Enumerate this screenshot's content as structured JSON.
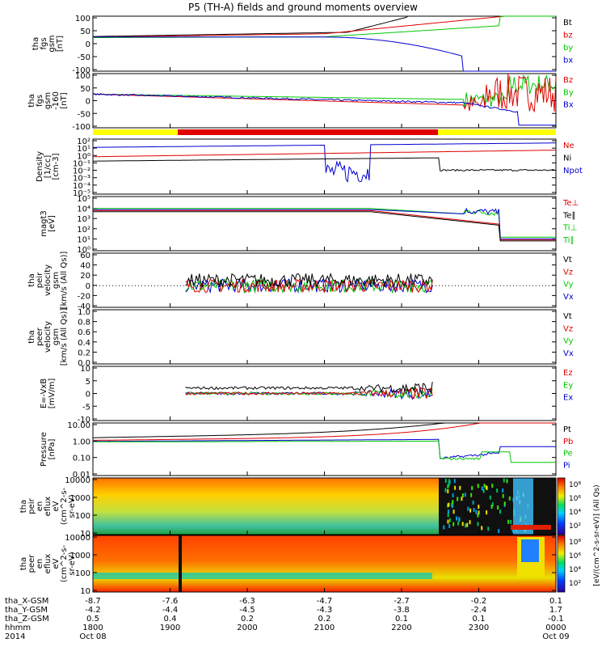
{
  "title": "P5 (TH-A) fields and ground moments overview",
  "colors": {
    "black": "#000000",
    "red": "#e00000",
    "green": "#00c800",
    "blue": "#0000d0",
    "yellow": "#ffff00",
    "barred": "#e00000"
  },
  "chart_data": [
    {
      "type": "line",
      "panel": 1,
      "ylabel": [
        "tha",
        "fgs",
        "gsm",
        "[nT]"
      ],
      "yticks": [
        "100",
        "50",
        "0",
        "-50",
        "-100"
      ],
      "ylim": [
        -100,
        100
      ],
      "legend": [
        "Bt",
        "bz",
        "by",
        "bx"
      ],
      "legend_colors": [
        "black",
        "red",
        "green",
        "blue"
      ]
    },
    {
      "type": "line",
      "panel": 2,
      "ylabel": [
        "tha",
        "fgs",
        "gsm",
        "-160",
        "[nT]"
      ],
      "yticks": [
        "100",
        "50",
        "0",
        "-50",
        "-100"
      ],
      "ylim": [
        -120,
        110
      ],
      "legend": [
        "Bz",
        "By",
        "Bx"
      ],
      "legend_colors": [
        "red",
        "green",
        "blue"
      ]
    },
    {
      "type": "line",
      "panel": 3,
      "ylabel": [
        "Density",
        "[1/cc]",
        "[cm-3]"
      ],
      "yticks": [
        "10²",
        "10¹",
        "10⁰",
        "10⁻¹",
        "10⁻²",
        "10⁻³",
        "10⁻⁴",
        "10⁻⁵"
      ],
      "scale": "log",
      "legend": [
        "Ne",
        "Ni",
        "Npot"
      ],
      "legend_colors": [
        "red",
        "black",
        "blue"
      ]
    },
    {
      "type": "line",
      "panel": 4,
      "ylabel": [
        "magt3",
        "[eV]"
      ],
      "yticks": [
        "10⁵",
        "10⁴",
        "10³",
        "10²",
        "10¹",
        "10⁰"
      ],
      "scale": "log",
      "legend": [
        "Te⊥",
        "Te∥",
        "Ti⊥",
        "Ti∥"
      ],
      "legend_colors": [
        "red",
        "black",
        "green",
        "green"
      ]
    },
    {
      "type": "line",
      "panel": 5,
      "ylabel": [
        "tha",
        "peir",
        "velocity",
        "gsm",
        "[km/s (All Qs)]"
      ],
      "yticks": [
        "60",
        "40",
        "20",
        "0",
        "-20",
        "-40"
      ],
      "ylim": [
        -40,
        60
      ],
      "legend": [
        "Vt",
        "Vz",
        "Vy",
        "Vx"
      ],
      "legend_colors": [
        "black",
        "red",
        "green",
        "blue"
      ]
    },
    {
      "type": "line",
      "panel": 6,
      "ylabel": [
        "tha",
        "peer",
        "velocity",
        "gsm",
        "[km/s (All Qs)]"
      ],
      "yticks": [
        "1.0",
        "0.8",
        "0.6",
        "0.4",
        "0.2",
        "0.0"
      ],
      "ylim": [
        0,
        1
      ],
      "legend": [
        "Vt",
        "Vz",
        "Vy",
        "Vx"
      ],
      "legend_colors": [
        "black",
        "red",
        "green",
        "blue"
      ]
    },
    {
      "type": "line",
      "panel": 7,
      "ylabel": [
        "E=-VxB",
        "[mV/m]"
      ],
      "yticks": [
        "10",
        "5",
        "0",
        "-5",
        "-10"
      ],
      "ylim": [
        -12,
        12
      ],
      "legend": [
        "Ez",
        "Ey",
        "Ex"
      ],
      "legend_colors": [
        "red",
        "green",
        "blue"
      ]
    },
    {
      "type": "line",
      "panel": 8,
      "ylabel": [
        "Pressure",
        "[nPa]"
      ],
      "yticks": [
        "10.00",
        "1.00",
        "0.10",
        "0.01"
      ],
      "scale": "log",
      "legend": [
        "Pt",
        "Pb",
        "Pe",
        "Pi"
      ],
      "legend_colors": [
        "black",
        "red",
        "green",
        "blue"
      ]
    },
    {
      "type": "heatmap",
      "panel": 9,
      "ylabel": [
        "tha",
        "peir",
        "en",
        "eflux",
        "eV",
        "(cm^2-s-",
        "sr-eV)"
      ],
      "yticks": [
        "10000",
        "1000",
        "100",
        "10"
      ],
      "scale": "log",
      "colorbar_ticks": [
        "10⁸",
        "10⁶",
        "10⁴",
        "10²"
      ]
    },
    {
      "type": "heatmap",
      "panel": 10,
      "ylabel": [
        "tha",
        "peer",
        "en",
        "eflux",
        "eV",
        "(cm^2-s-",
        "sr-eV)"
      ],
      "yticks": [
        "10000",
        "1000",
        "100",
        "10"
      ],
      "scale": "log",
      "colorbar_ticks": [
        "10⁸",
        "10⁶",
        "10⁴",
        "10²"
      ]
    }
  ],
  "colorbar_label": "[eV/(cm^2-s-sr-eV)] (All Qs)",
  "xaxis": {
    "row_labels": [
      "tha_X-GSM",
      "tha_Y-GSM",
      "tha_Z-GSM",
      "hhmm",
      "2014"
    ],
    "columns": [
      {
        "x": "-8.7",
        "y": "-4.2",
        "z": "0.5",
        "t": "1800",
        "d": "Oct 08"
      },
      {
        "x": "-7.6",
        "y": "-4.4",
        "z": "0.4",
        "t": "1900",
        "d": ""
      },
      {
        "x": "-6.3",
        "y": "-4.5",
        "z": "0.2",
        "t": "2000",
        "d": ""
      },
      {
        "x": "-4.7",
        "y": "-4.3",
        "z": "0.2",
        "t": "2100",
        "d": ""
      },
      {
        "x": "-2.7",
        "y": "-3.8",
        "z": "0.1",
        "t": "2200",
        "d": ""
      },
      {
        "x": "-0.2",
        "y": "-2.4",
        "z": "0.1",
        "t": "2300",
        "d": ""
      },
      {
        "x": "0.1",
        "y": "1.7",
        "z": "-0.1",
        "t": "0000",
        "d": "Oct 09"
      }
    ]
  }
}
